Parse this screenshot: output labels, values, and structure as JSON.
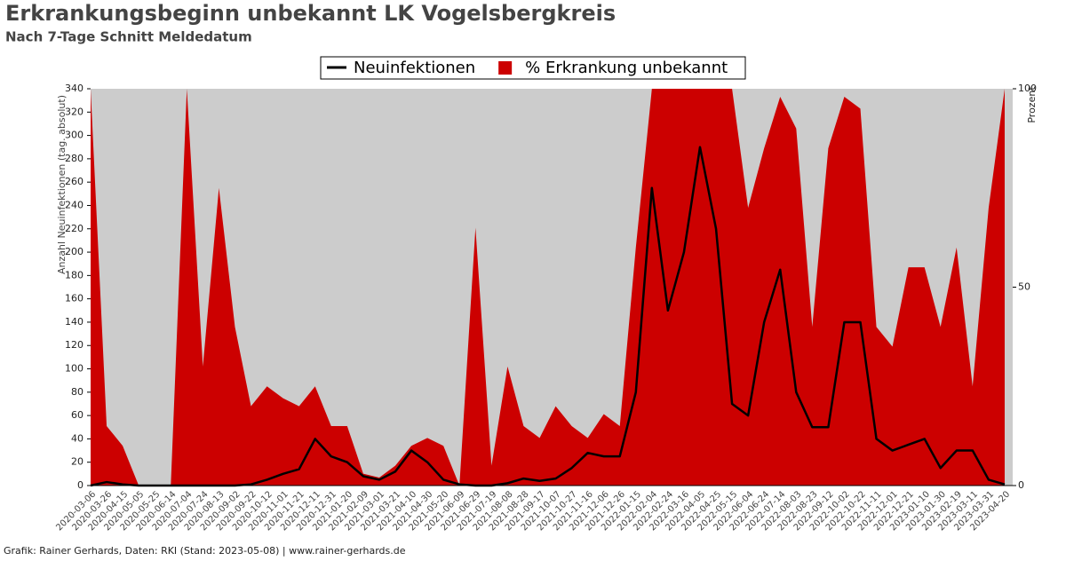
{
  "chart_data": {
    "type": "line",
    "title": "Erkrankungsbeginn unbekannt LK Vogelsbergkreis",
    "subtitle": "Nach 7-Tage Schnitt Meldedatum",
    "ylabel": "Anzahl Neuinfektionen (tag. absolut)",
    "y2label": "Prozent",
    "footer": "Grafik: Rainer Gerhards, Daten: RKI (Stand: 2023-05-08) | www.rainer-gerhards.de",
    "categories": [
      "2020-03-06",
      "2020-03-26",
      "2020-04-15",
      "2020-05-05",
      "2020-05-25",
      "2020-06-14",
      "2020-07-04",
      "2020-07-24",
      "2020-08-13",
      "2020-09-02",
      "2020-09-22",
      "2020-10-12",
      "2020-11-01",
      "2020-11-21",
      "2020-12-11",
      "2020-12-31",
      "2021-01-20",
      "2021-02-09",
      "2021-03-01",
      "2021-03-21",
      "2021-04-10",
      "2021-04-30",
      "2021-05-20",
      "2021-06-09",
      "2021-06-29",
      "2021-07-19",
      "2021-08-08",
      "2021-08-28",
      "2021-09-17",
      "2021-10-07",
      "2021-10-27",
      "2021-11-16",
      "2021-12-06",
      "2021-12-26",
      "2022-01-15",
      "2022-02-04",
      "2022-02-24",
      "2022-03-16",
      "2022-04-05",
      "2022-04-25",
      "2022-05-15",
      "2022-06-04",
      "2022-06-24",
      "2022-07-14",
      "2022-08-03",
      "2022-08-23",
      "2022-09-12",
      "2022-10-02",
      "2022-10-22",
      "2022-11-11",
      "2022-12-01",
      "2022-12-21",
      "2023-01-10",
      "2023-01-30",
      "2023-02-19",
      "2023-03-11",
      "2023-03-31",
      "2023-04-20"
    ],
    "series": [
      {
        "name": "Neuinfektionen",
        "color": "#000000",
        "type": "line",
        "values": [
          0,
          3,
          1,
          0,
          0,
          0,
          0,
          0,
          0,
          0,
          1,
          5,
          10,
          14,
          40,
          25,
          20,
          8,
          5,
          12,
          30,
          20,
          5,
          1,
          0,
          0,
          2,
          6,
          4,
          6,
          15,
          28,
          25,
          25,
          80,
          255,
          150,
          200,
          290,
          220,
          70,
          60,
          140,
          185,
          80,
          50,
          50,
          140,
          140,
          40,
          30,
          35,
          40,
          15,
          30,
          30,
          5,
          1
        ]
      },
      {
        "name": "% Erkrankung unbekannt",
        "color": "#cc0000",
        "type": "area",
        "axis": "y2",
        "values": [
          100,
          15,
          10,
          0,
          0,
          0,
          100,
          30,
          75,
          40,
          20,
          25,
          22,
          20,
          25,
          15,
          15,
          3,
          2,
          5,
          10,
          12,
          10,
          0,
          65,
          5,
          30,
          15,
          12,
          20,
          15,
          12,
          18,
          15,
          60,
          100,
          100,
          100,
          100,
          100,
          100,
          70,
          85,
          98,
          90,
          40,
          85,
          98,
          95,
          40,
          35,
          55,
          55,
          40,
          60,
          25,
          70,
          100
        ]
      }
    ],
    "ylim": [
      0,
      340
    ],
    "yticks": [
      0,
      20,
      40,
      60,
      80,
      100,
      120,
      140,
      160,
      180,
      200,
      220,
      240,
      260,
      280,
      300,
      320,
      340
    ],
    "y2lim": [
      0,
      100
    ],
    "y2ticks": [
      0,
      50,
      100
    ],
    "background": "#cccccc"
  }
}
